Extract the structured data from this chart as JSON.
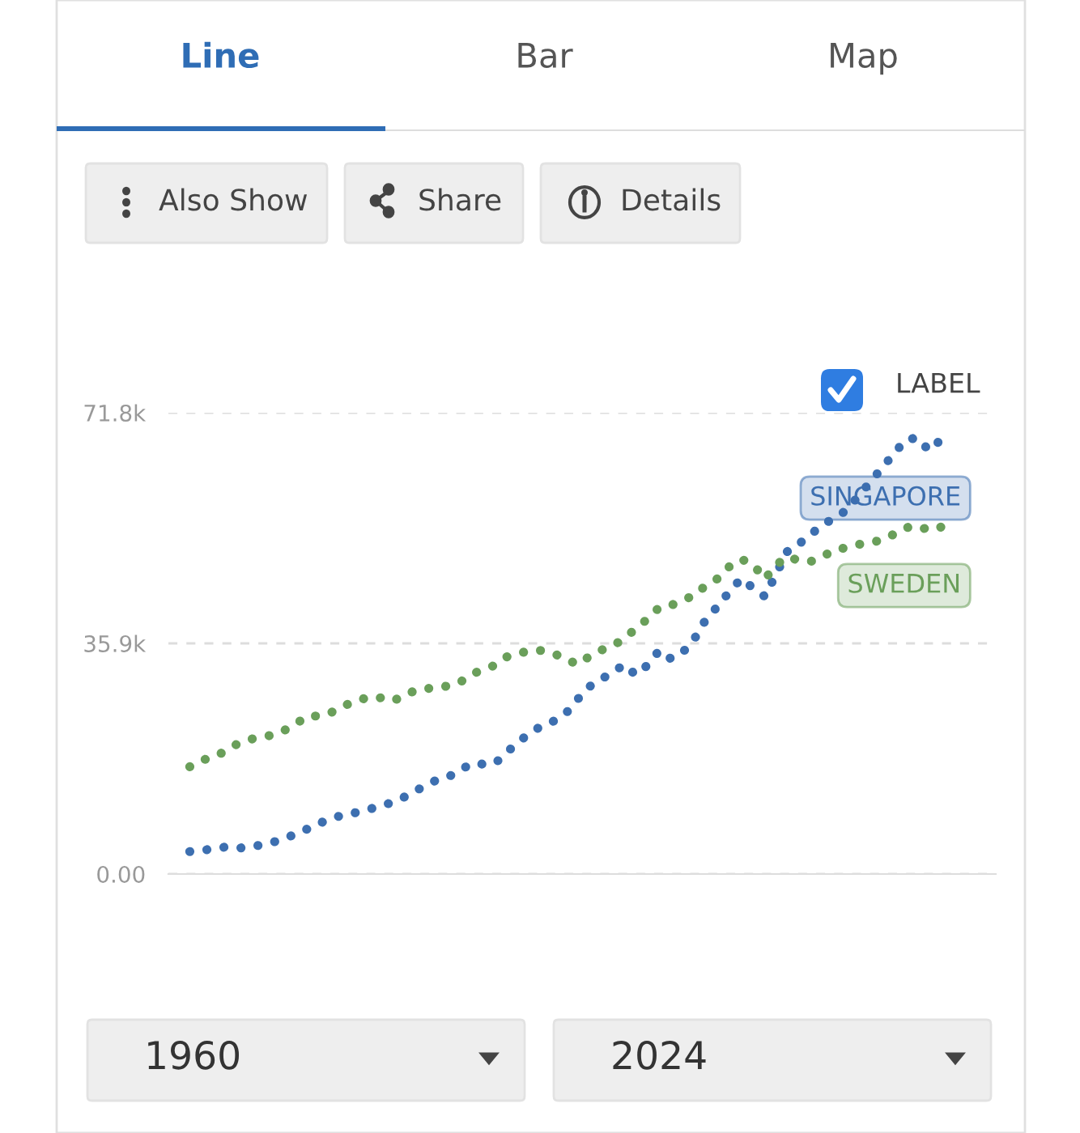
{
  "chart_data": {
    "type": "line",
    "categories": [
      null,
      null,
      null,
      null,
      null,
      null,
      null,
      null,
      null,
      null,
      null,
      null,
      null,
      null,
      null,
      null,
      null,
      null,
      null,
      null,
      null,
      null,
      null,
      null,
      null,
      null,
      null,
      null,
      null,
      null,
      null,
      null,
      null,
      null,
      null,
      null,
      null,
      null,
      null,
      null,
      null,
      null,
      null,
      null,
      null,
      null,
      null,
      null,
      null,
      null,
      null,
      null,
      null,
      null,
      null,
      null,
      null,
      null,
      null,
      null,
      null,
      null,
      null,
      null,
      null
    ],
    "series": [
      {
        "name": "SINGAPORE",
        "color": "#3d6fb0",
        "values": [
          3500,
          3700,
          3900,
          4200,
          4000,
          4200,
          4500,
          4900,
          5500,
          6200,
          7000,
          7900,
          8500,
          9200,
          9500,
          9900,
          10500,
          11000,
          11700,
          12700,
          13700,
          14600,
          15100,
          16100,
          17200,
          17100,
          17200,
          18900,
          20600,
          21900,
          23100,
          23800,
          24900,
          27100,
          29100,
          30300,
          31300,
          32600,
          31000,
          32500,
          34800,
          33500,
          34500,
          36600,
          39700,
          41700,
          44000,
          46000,
          44500,
          43200,
          null,
          50500,
          51500,
          53000,
          54500,
          55400,
          56700,
          null,
          null,
          null,
          null,
          67600,
          67900,
          65900,
          67600
        ]
      },
      {
        "name": "SWEDEN",
        "color": "#6a9f5a",
        "values": [
          16700,
          17700,
          18200,
          19100,
          20200,
          20900,
          21300,
          21600,
          22300,
          23300,
          24600,
          24600,
          25100,
          26100,
          26800,
          27400,
          27600,
          26900,
          27400,
          28400,
          28900,
          28900,
          29300,
          29800,
          31100,
          31800,
          32500,
          33800,
          34300,
          34800,
          34800,
          34300,
          33600,
          32600,
          33800,
          34800,
          35500,
          36600,
          38200,
          39700,
          41500,
          41800,
          42700,
          43300,
          45000,
          46000,
          47900,
          49000,
          48200,
          45900,
          48200,
          49400,
          48700,
          48700,
          49500,
          50500,
          50800,
          51300,
          51600,
          52000,
          52900,
          53900,
          54200,
          53500,
          54000
        ]
      }
    ],
    "ylim": [
      0,
      71800
    ],
    "yticks": [
      {
        "value": 0,
        "label": "0.00"
      },
      {
        "value": 35900,
        "label": "35.9k"
      },
      {
        "value": 71800,
        "label": "71.8k"
      }
    ],
    "grid": "y",
    "legend": false,
    "line_style": "dotted",
    "annotations": [
      "Line",
      "Bar",
      "Map",
      "Also Show",
      "Share",
      "Details",
      "LABEL",
      "1960",
      "2024"
    ]
  }
}
